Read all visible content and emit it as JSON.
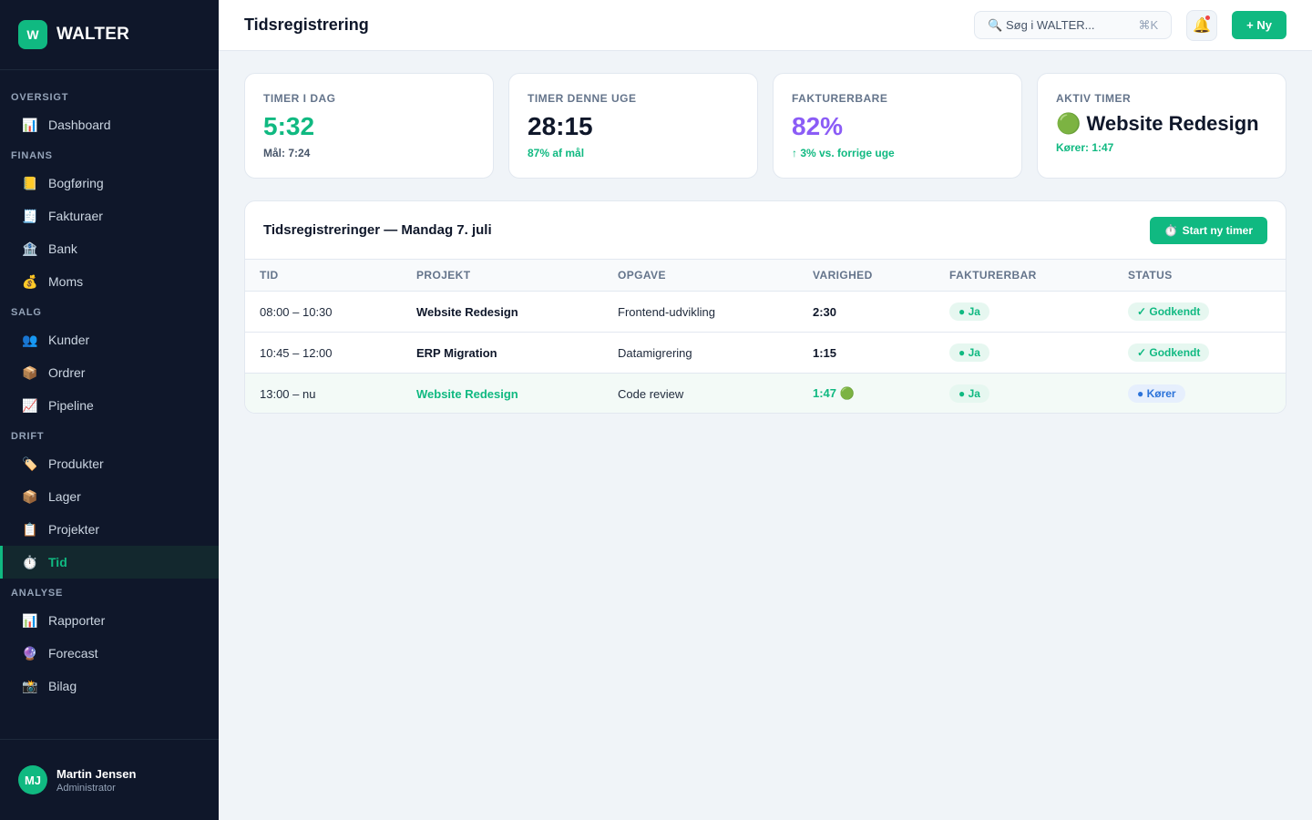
{
  "brand": {
    "logo_letter": "W",
    "name": "WALTER"
  },
  "sidebar": {
    "sections": [
      {
        "title": "OVERSIGT",
        "items": [
          {
            "icon": "📊",
            "label": "Dashboard"
          }
        ]
      },
      {
        "title": "FINANS",
        "items": [
          {
            "icon": "📒",
            "label": "Bogføring"
          },
          {
            "icon": "🧾",
            "label": "Fakturaer"
          },
          {
            "icon": "🏦",
            "label": "Bank"
          },
          {
            "icon": "💰",
            "label": "Moms"
          }
        ]
      },
      {
        "title": "SALG",
        "items": [
          {
            "icon": "👥",
            "label": "Kunder"
          },
          {
            "icon": "📦",
            "label": "Ordrer"
          },
          {
            "icon": "📈",
            "label": "Pipeline"
          }
        ]
      },
      {
        "title": "DRIFT",
        "items": [
          {
            "icon": "🏷️",
            "label": "Produkter"
          },
          {
            "icon": "📦",
            "label": "Lager"
          },
          {
            "icon": "📋",
            "label": "Projekter"
          },
          {
            "icon": "⏱️",
            "label": "Tid",
            "active": true
          }
        ]
      },
      {
        "title": "ANALYSE",
        "items": [
          {
            "icon": "📊",
            "label": "Rapporter"
          },
          {
            "icon": "🔮",
            "label": "Forecast"
          },
          {
            "icon": "📸",
            "label": "Bilag"
          }
        ]
      }
    ]
  },
  "user": {
    "initials": "MJ",
    "name": "Martin Jensen",
    "role": "Administrator"
  },
  "header": {
    "title": "Tidsregistrering",
    "search_placeholder": "🔍 Søg i WALTER...",
    "search_shortcut": "⌘K",
    "bell_icon": "🔔",
    "new_button": "+ Ny"
  },
  "cards": [
    {
      "label": "TIMER I DAG",
      "value": "5:32",
      "sub": "Mål: 7:24",
      "value_color": "#10b981",
      "sub_color": "#475569"
    },
    {
      "label": "TIMER DENNE UGE",
      "value": "28:15",
      "sub": "87% af mål",
      "value_color": "#0f172a",
      "sub_color": "#10b981"
    },
    {
      "label": "FAKTURERBARE",
      "value": "82%",
      "sub": "↑ 3% vs. forrige uge",
      "value_color": "#8b5cf6",
      "sub_color": "#10b981"
    },
    {
      "label": "AKTIV TIMER",
      "value": "🟢 Website Redesign",
      "sub": "Kører: 1:47",
      "value_color": "#0f172a",
      "sub_color": "#10b981"
    }
  ],
  "entries": {
    "title": "Tidsregistreringer — Mandag 7. juli",
    "start_button_icon": "⏱️",
    "start_button": "Start ny timer",
    "columns": [
      "TID",
      "PROJEKT",
      "OPGAVE",
      "VARIGHED",
      "FAKTURERBAR",
      "STATUS"
    ],
    "rows": [
      {
        "time": "08:00 – 10:30",
        "project": "Website Redesign",
        "task": "Frontend-udvikling",
        "duration": "2:30",
        "billable": "● Ja",
        "status": "✓ Godkendt",
        "status_kind": "green",
        "running": false
      },
      {
        "time": "10:45 – 12:00",
        "project": "ERP Migration",
        "task": "Datamigrering",
        "duration": "1:15",
        "billable": "● Ja",
        "status": "✓ Godkendt",
        "status_kind": "green",
        "running": false
      },
      {
        "time": "13:00 – nu",
        "project": "Website Redesign",
        "task": "Code review",
        "duration": "1:47 🟢",
        "billable": "● Ja",
        "status": "● Kører",
        "status_kind": "blue",
        "running": true
      }
    ]
  }
}
